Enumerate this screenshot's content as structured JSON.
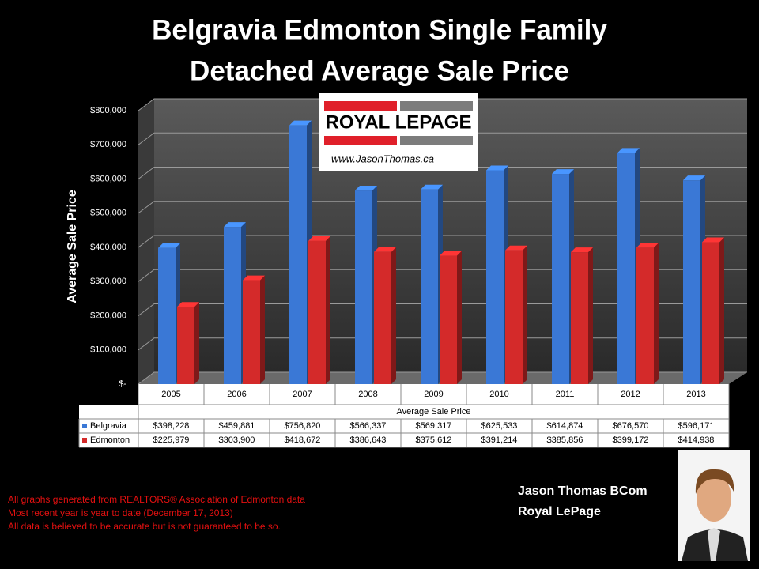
{
  "chart_data": {
    "type": "bar3d",
    "title": [
      "Belgravia Edmonton Single Family",
      "Detached Average Sale Price"
    ],
    "y_label": "Average Sale Price",
    "x_label": "Average Sale Price",
    "categories": [
      "2005",
      "2006",
      "2007",
      "2008",
      "2009",
      "2010",
      "2011",
      "2012",
      "2013"
    ],
    "series": [
      {
        "name": "Belgravia",
        "color": "#3a78d6",
        "values": [
          398228,
          459881,
          756820,
          566337,
          569317,
          625533,
          614874,
          676570,
          596171
        ],
        "value_labels": [
          "$398,228",
          "$459,881",
          "$756,820",
          "$566,337",
          "$569,317",
          "$625,533",
          "$614,874",
          "$676,570",
          "$596,171"
        ]
      },
      {
        "name": "Edmonton",
        "color": "#d42a2a",
        "values": [
          225979,
          303900,
          418672,
          386643,
          375612,
          391214,
          385856,
          399172,
          414938
        ],
        "value_labels": [
          "$225,979",
          "$303,900",
          "$418,672",
          "$386,643",
          "$375,612",
          "$391,214",
          "$385,856",
          "$399,172",
          "$414,938"
        ]
      }
    ],
    "ylim": [
      0,
      800000
    ],
    "yticks": [
      {
        "value": 0,
        "label": "$-"
      },
      {
        "value": 100000,
        "label": "$100,000"
      },
      {
        "value": 200000,
        "label": "$200,000"
      },
      {
        "value": 300000,
        "label": "$300,000"
      },
      {
        "value": 400000,
        "label": "$400,000"
      },
      {
        "value": 500000,
        "label": "$500,000"
      },
      {
        "value": 600000,
        "label": "$600,000"
      },
      {
        "value": 700000,
        "label": "$700,000"
      },
      {
        "value": 800000,
        "label": "$800,000"
      }
    ],
    "grid": true,
    "data_table": true
  },
  "logo": {
    "brand": "ROYAL LEPAGE",
    "url": "www.JasonThomas.ca"
  },
  "footnotes": [
    "All graphs generated from REALTORS® Association of Edmonton data",
    "Most recent year is year to date (December 17, 2013)",
    "All data is believed to be accurate but is not guaranteed to be so."
  ],
  "author": {
    "name": "Jason Thomas BCom",
    "company": "Royal LePage"
  }
}
